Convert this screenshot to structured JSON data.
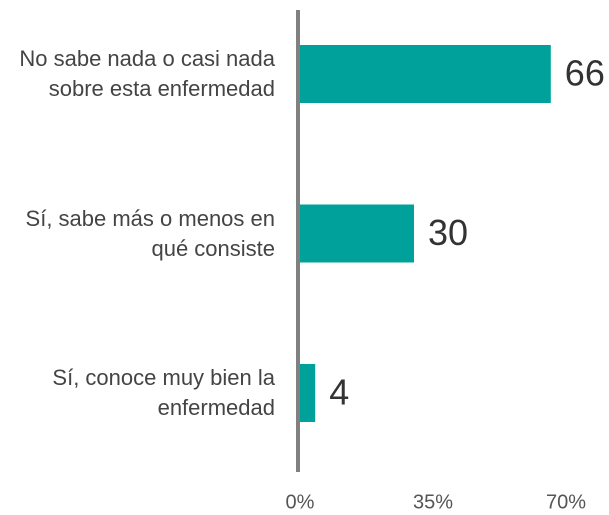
{
  "chart_data": {
    "type": "bar",
    "orientation": "horizontal",
    "categories": [
      "No sabe nada o casi nada sobre esta enfermedad",
      "Sí, sabe más o menos en qué consiste",
      "Sí, conoce muy bien la enfermedad"
    ],
    "values": [
      66,
      30,
      4
    ],
    "color": "#00a19a",
    "xlim": [
      0,
      70
    ],
    "xticks": [
      {
        "value": 0,
        "label": "0%"
      },
      {
        "value": 35,
        "label": "35%"
      },
      {
        "value": 70,
        "label": "70%"
      }
    ],
    "grid": false
  }
}
